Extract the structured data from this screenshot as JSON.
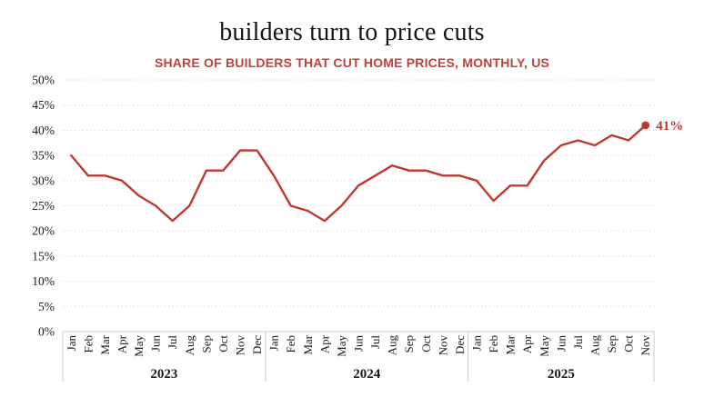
{
  "chart_data": {
    "type": "line",
    "title": "builders turn to price cuts",
    "subtitle": "SHARE OF BUILDERS THAT CUT HOME PRICES, MONTHLY, US",
    "series_name": "share of builders that cut home prices",
    "unit": "percent",
    "ylim": [
      0,
      50
    ],
    "y_tick_step": 5,
    "y_tick_labels": [
      "0%",
      "5%",
      "10%",
      "15%",
      "20%",
      "25%",
      "30%",
      "35%",
      "40%",
      "45%",
      "50%"
    ],
    "grid": "horizontal-dotted",
    "legend": "none",
    "line_color": "#bf3a2e",
    "subtitle_color": "#c2413a",
    "axis_line_color": "#c9c9c9",
    "gridline_color": "#dadada",
    "end_label": "41%",
    "years": [
      {
        "label": "2023",
        "months": [
          "Jan",
          "Feb",
          "Mar",
          "Apr",
          "May",
          "Jun",
          "Jul",
          "Aug",
          "Sep",
          "Oct",
          "Nov",
          "Dec"
        ],
        "values": [
          35,
          31,
          31,
          30,
          27,
          25,
          22,
          25,
          32,
          32,
          36,
          36
        ]
      },
      {
        "label": "2024",
        "months": [
          "Jan",
          "Feb",
          "Mar",
          "Apr",
          "May",
          "Jun",
          "Jul",
          "Aug",
          "Sep",
          "Oct",
          "Nov",
          "Dec"
        ],
        "values": [
          31,
          25,
          24,
          22,
          25,
          29,
          31,
          33,
          32,
          32,
          31,
          31
        ]
      },
      {
        "label": "2025",
        "months": [
          "Jan",
          "Feb",
          "Mar",
          "Apr",
          "May",
          "Jun",
          "Jul",
          "Aug",
          "Sep",
          "Oct",
          "Nov"
        ],
        "values": [
          30,
          26,
          29,
          29,
          34,
          37,
          38,
          37,
          39,
          38,
          41
        ]
      }
    ]
  }
}
